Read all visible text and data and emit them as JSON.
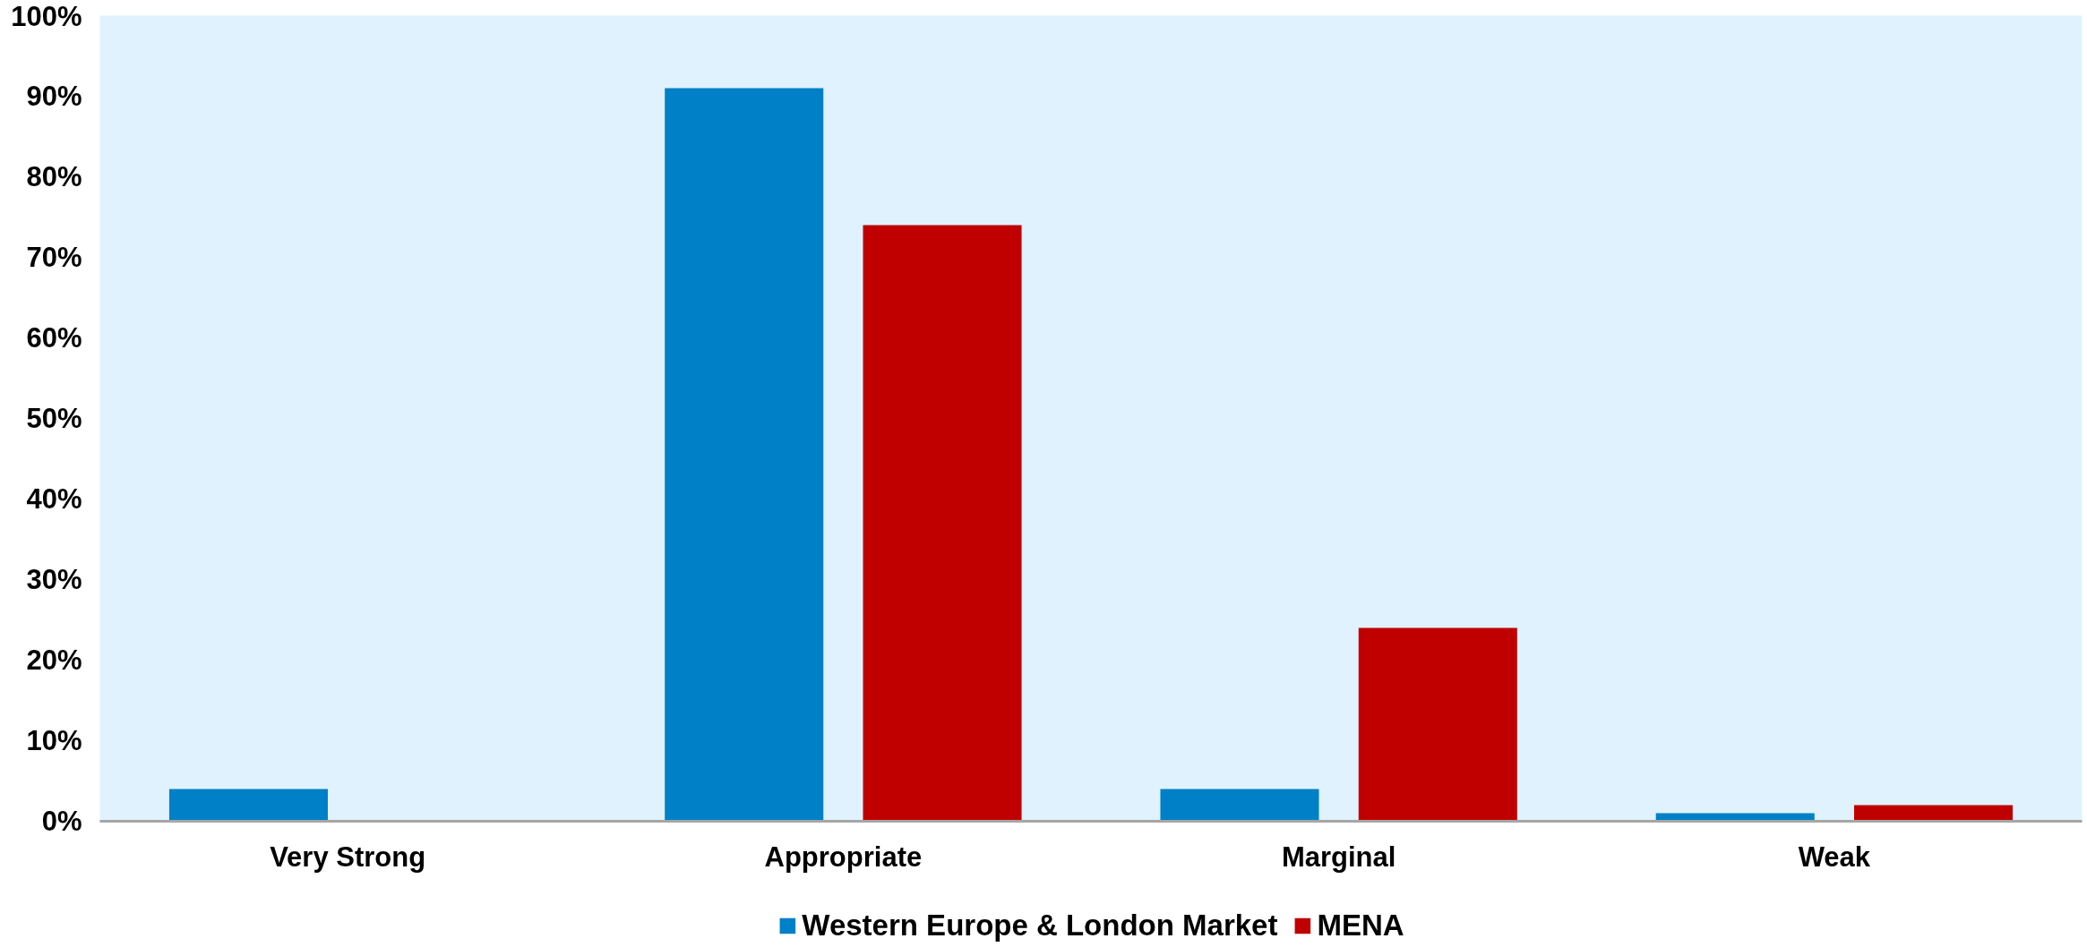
{
  "chart_data": {
    "type": "bar",
    "categories": [
      "Very Strong",
      "Appropriate",
      "Marginal",
      "Weak"
    ],
    "series": [
      {
        "name": "Western Europe & London Market",
        "color": "#0080c6",
        "values": [
          4,
          91,
          4,
          1
        ]
      },
      {
        "name": "MENA",
        "color": "#c00000",
        "values": [
          0,
          74,
          24,
          2
        ]
      }
    ],
    "ylim": [
      0,
      100
    ],
    "yticks": [
      {
        "value": 0,
        "label": "0%"
      },
      {
        "value": 10,
        "label": "10%"
      },
      {
        "value": 20,
        "label": "20%"
      },
      {
        "value": 30,
        "label": "30%"
      },
      {
        "value": 40,
        "label": "40%"
      },
      {
        "value": 50,
        "label": "50%"
      },
      {
        "value": 60,
        "label": "60%"
      },
      {
        "value": 70,
        "label": "70%"
      },
      {
        "value": 80,
        "label": "80%"
      },
      {
        "value": 90,
        "label": "90%"
      },
      {
        "value": 100,
        "label": "100%"
      }
    ],
    "grid": false,
    "legend": "bottom"
  }
}
